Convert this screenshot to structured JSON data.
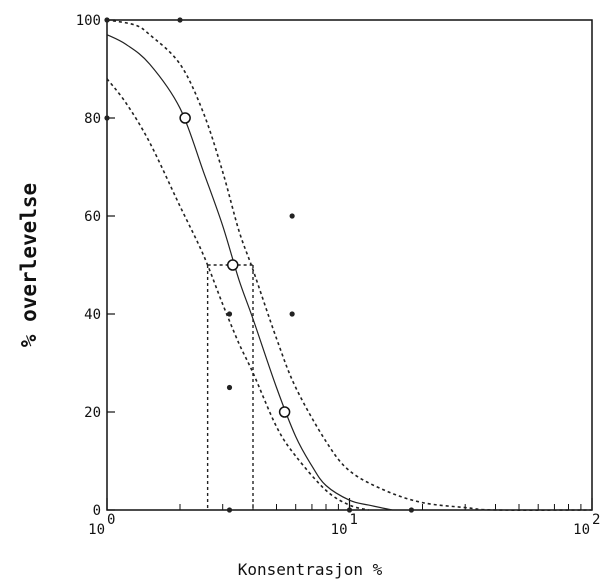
{
  "chart_data": {
    "type": "scatter",
    "title": "",
    "xlabel": "Konsentrasjon %",
    "ylabel": "% overlevelse",
    "xscale": "log",
    "xlim": [
      1,
      100
    ],
    "ylim": [
      0,
      100
    ],
    "x_ticks": [
      {
        "base": "10",
        "exp": "0",
        "value": 1
      },
      {
        "base": "10",
        "exp": "1",
        "value": 10
      },
      {
        "base": "10",
        "exp": "2",
        "value": 100
      }
    ],
    "y_ticks": [
      "0",
      "20",
      "40",
      "60",
      "80",
      "100"
    ],
    "grid": false,
    "legend": "none",
    "observations": [
      {
        "x": 1.0,
        "y": 100
      },
      {
        "x": 2.0,
        "y": 100
      },
      {
        "x": 1.0,
        "y": 80
      },
      {
        "x": 3.2,
        "y": 40
      },
      {
        "x": 3.2,
        "y": 25
      },
      {
        "x": 5.8,
        "y": 60
      },
      {
        "x": 5.8,
        "y": 40
      },
      {
        "x": 10.0,
        "y": 0
      },
      {
        "x": 18.0,
        "y": 0
      },
      {
        "x": 3.2,
        "y": 0
      }
    ],
    "mean_points": [
      {
        "x": 2.1,
        "y": 80
      },
      {
        "x": 3.3,
        "y": 50
      },
      {
        "x": 5.4,
        "y": 20
      }
    ],
    "fitted_curve": {
      "x": [
        1.0,
        1.2,
        1.5,
        2.0,
        2.5,
        3.0,
        3.5,
        4.0,
        5.0,
        6.0,
        7.0,
        8.0,
        10.0,
        12.0,
        15.0
      ],
      "y": [
        97,
        95,
        91,
        82,
        69,
        58,
        47,
        39,
        25,
        15,
        9,
        5,
        2,
        1,
        0
      ]
    },
    "upper_confidence_band": {
      "x": [
        1.0,
        1.3,
        1.5,
        2.0,
        2.5,
        3.0,
        3.5,
        4.0,
        5.0,
        6.0,
        8.0,
        10.0,
        14.0,
        20.0,
        30.0,
        40.0,
        100.0
      ],
      "y": [
        100,
        99,
        97,
        91,
        81,
        69,
        57,
        49,
        35,
        25,
        14,
        8,
        4,
        1.5,
        0.5,
        0,
        0
      ]
    },
    "lower_confidence_band": {
      "x": [
        1.0,
        1.2,
        1.5,
        2.0,
        2.5,
        3.0,
        3.5,
        4.0,
        5.0,
        6.0,
        8.0,
        10.0,
        12.0
      ],
      "y": [
        88,
        83,
        75,
        62,
        52,
        42,
        34,
        28,
        17,
        11,
        4,
        1,
        0
      ]
    },
    "lc50_guides": [
      {
        "x": 2.6,
        "y": 50
      },
      {
        "x": 4.0,
        "y": 50
      }
    ]
  }
}
